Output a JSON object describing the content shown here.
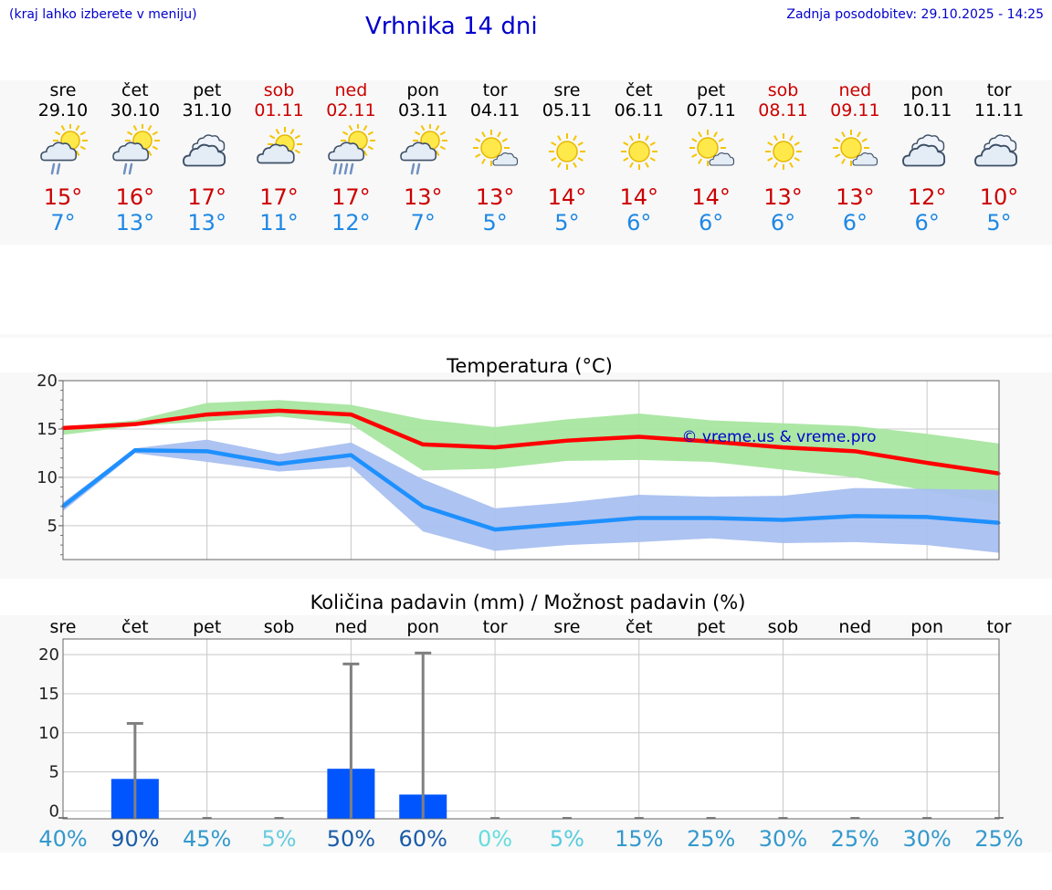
{
  "header": {
    "menu_hint": "(kraj lahko izberete v meniju)",
    "title": "Vrhnika 14 dni",
    "updated": "Zadnja posodobitev: 29.10.2025 - 14:25"
  },
  "colors": {
    "title_blue": "#0000cc",
    "weekend_red": "#cc0000",
    "temp_max": "#ff0000",
    "temp_min": "#1e90ff",
    "band_max": "#a8e6a0",
    "band_min": "#a9c0f0",
    "bar": "#0055ff"
  },
  "days": [
    {
      "name": "sre",
      "date": "29.10",
      "weekend": false,
      "icon": "sun-cloud-rain-icon",
      "max": "15°",
      "min": "7°"
    },
    {
      "name": "čet",
      "date": "30.10",
      "weekend": false,
      "icon": "sun-cloud-rain-icon",
      "max": "16°",
      "min": "13°"
    },
    {
      "name": "pet",
      "date": "31.10",
      "weekend": false,
      "icon": "cloudy-icon",
      "max": "17°",
      "min": "13°"
    },
    {
      "name": "sob",
      "date": "01.11",
      "weekend": true,
      "icon": "sun-cloud-icon",
      "max": "17°",
      "min": "11°"
    },
    {
      "name": "ned",
      "date": "02.11",
      "weekend": true,
      "icon": "sun-cloud-heavy-rain-icon",
      "max": "17°",
      "min": "12°"
    },
    {
      "name": "pon",
      "date": "03.11",
      "weekend": false,
      "icon": "sun-cloud-rain-icon",
      "max": "13°",
      "min": "7°"
    },
    {
      "name": "tor",
      "date": "04.11",
      "weekend": false,
      "icon": "sun-small-cloud-icon",
      "max": "13°",
      "min": "5°"
    },
    {
      "name": "sre",
      "date": "05.11",
      "weekend": false,
      "icon": "sun-icon",
      "max": "14°",
      "min": "5°"
    },
    {
      "name": "čet",
      "date": "06.11",
      "weekend": false,
      "icon": "sun-icon",
      "max": "14°",
      "min": "6°"
    },
    {
      "name": "pet",
      "date": "07.11",
      "weekend": false,
      "icon": "sun-small-cloud-icon",
      "max": "14°",
      "min": "6°"
    },
    {
      "name": "sob",
      "date": "08.11",
      "weekend": true,
      "icon": "sun-icon",
      "max": "13°",
      "min": "6°"
    },
    {
      "name": "ned",
      "date": "09.11",
      "weekend": true,
      "icon": "sun-small-cloud-icon",
      "max": "13°",
      "min": "6°"
    },
    {
      "name": "pon",
      "date": "10.11",
      "weekend": false,
      "icon": "cloudy-icon",
      "max": "12°",
      "min": "6°"
    },
    {
      "name": "tor",
      "date": "11.11",
      "weekend": false,
      "icon": "cloudy-icon",
      "max": "10°",
      "min": "5°"
    }
  ],
  "chart_data": [
    {
      "type": "line",
      "title": "Temperatura (°C)",
      "watermark": "© vreme.us & vreme.pro",
      "ylim": [
        1.5,
        20
      ],
      "yticks": [
        5,
        10,
        15,
        20
      ],
      "x": [
        "29.10",
        "30.10",
        "31.10",
        "01.11",
        "02.11",
        "03.11",
        "04.11",
        "05.11",
        "06.11",
        "07.11",
        "08.11",
        "09.11",
        "10.11",
        "11.11"
      ],
      "series": [
        {
          "name": "max",
          "values": [
            15.1,
            15.5,
            16.5,
            16.9,
            16.5,
            13.4,
            13.1,
            13.8,
            14.2,
            13.7,
            13.1,
            12.7,
            11.5,
            10.4
          ],
          "band_low": [
            14.4,
            15.3,
            15.8,
            16.3,
            15.5,
            10.7,
            10.9,
            11.7,
            11.8,
            11.6,
            10.8,
            10.0,
            8.6,
            7.2
          ],
          "band_high": [
            15.2,
            15.9,
            17.7,
            18.0,
            17.5,
            16.0,
            15.2,
            16.0,
            16.6,
            15.9,
            15.6,
            15.3,
            14.5,
            13.5
          ]
        },
        {
          "name": "min",
          "values": [
            7.0,
            12.8,
            12.7,
            11.4,
            12.3,
            7.0,
            4.6,
            5.2,
            5.8,
            5.8,
            5.6,
            6.0,
            5.9,
            5.3
          ],
          "band_low": [
            6.5,
            12.5,
            11.6,
            10.6,
            11.1,
            4.4,
            2.4,
            3.0,
            3.3,
            3.7,
            3.2,
            3.3,
            3.0,
            2.2
          ],
          "band_high": [
            7.4,
            13.0,
            13.9,
            12.4,
            13.6,
            9.8,
            6.8,
            7.4,
            8.2,
            8.0,
            8.1,
            8.9,
            8.8,
            8.7
          ]
        }
      ]
    },
    {
      "type": "bar",
      "title": "Količina padavin (mm) / Možnost padavin (%)",
      "ylim": [
        -1,
        22
      ],
      "yticks": [
        0,
        5,
        10,
        15,
        20
      ],
      "categories": [
        "sre",
        "čet",
        "pet",
        "sob",
        "ned",
        "pon",
        "tor",
        "sre",
        "čet",
        "pet",
        "sob",
        "ned",
        "pon",
        "tor"
      ],
      "values": [
        0,
        4.1,
        0,
        0,
        5.4,
        2.1,
        0,
        0,
        0,
        0,
        0,
        0,
        0,
        0
      ],
      "error_high": [
        0,
        11.2,
        0,
        0,
        18.8,
        20.2,
        0,
        0,
        0,
        0,
        0,
        0,
        0,
        0
      ],
      "probability_labels": [
        "40%",
        "90%",
        "45%",
        "5%",
        "50%",
        "60%",
        "0%",
        "5%",
        "15%",
        "25%",
        "30%",
        "25%",
        "30%",
        "25%"
      ],
      "probability_colors": [
        "#3399cc",
        "#1a5ca8",
        "#3399cc",
        "#66ccdd",
        "#1a5ca8",
        "#1a5ca8",
        "#66dddd",
        "#55ccdd",
        "#3399cc",
        "#3399cc",
        "#3399cc",
        "#3399cc",
        "#3399cc",
        "#3399cc"
      ]
    }
  ]
}
